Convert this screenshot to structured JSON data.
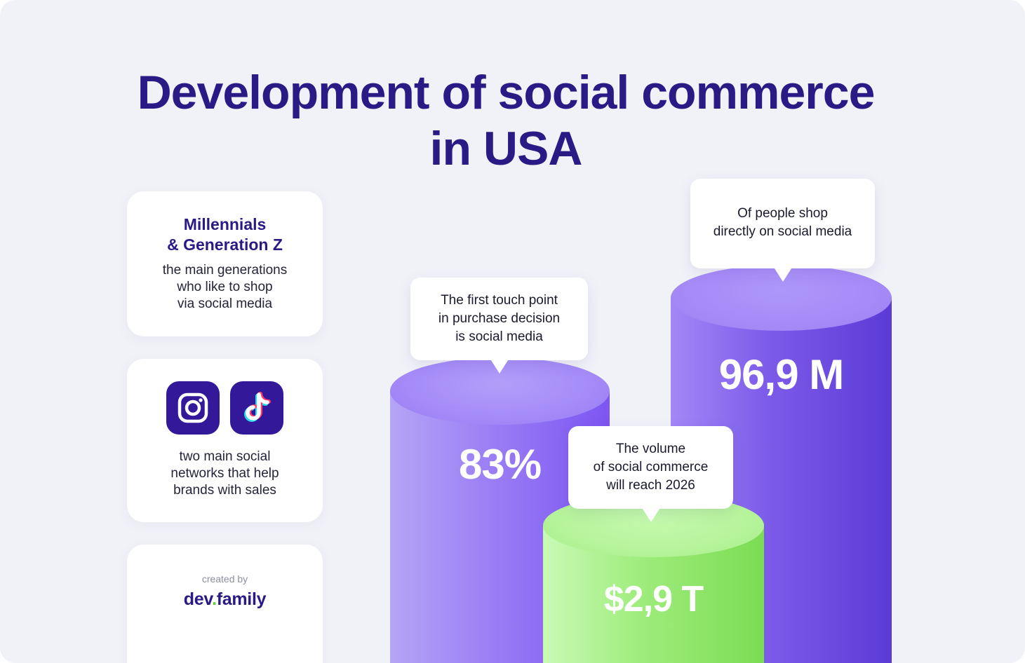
{
  "title": {
    "line1": "Development of social commerce",
    "line2": "in USA"
  },
  "cards": {
    "generations": {
      "heading_line1": "Millennials",
      "heading_line2": "& Generation Z",
      "text_line1": "the main generations",
      "text_line2": "who like to shop",
      "text_line3": "via social media"
    },
    "networks": {
      "icons": [
        "instagram-icon",
        "tiktok-icon"
      ],
      "text_line1": "two main social",
      "text_line2": "networks that help",
      "text_line3": "brands with sales"
    },
    "credit": {
      "label": "created by",
      "brand_part1": "dev",
      "brand_dot": ".",
      "brand_part2": "family"
    }
  },
  "stats": {
    "first_touch": {
      "value": "83%",
      "caption_line1": "The first touch point",
      "caption_line2": "in purchase decision",
      "caption_line3": "is social media"
    },
    "volume": {
      "value": "$2,9 T",
      "caption_line1": "The volume",
      "caption_line2": "of social commerce",
      "caption_line3": "will reach 2026"
    },
    "shoppers": {
      "value": "96,9 M",
      "caption_line1": "Of people shop",
      "caption_line2": "directly on social media"
    }
  },
  "colors": {
    "title": "#2a1a86",
    "purple_cylinder": "#7b5af0",
    "green_cylinder": "#7fe05a",
    "icon_tile": "#33189a",
    "brand_dot": "#5acb3c"
  }
}
